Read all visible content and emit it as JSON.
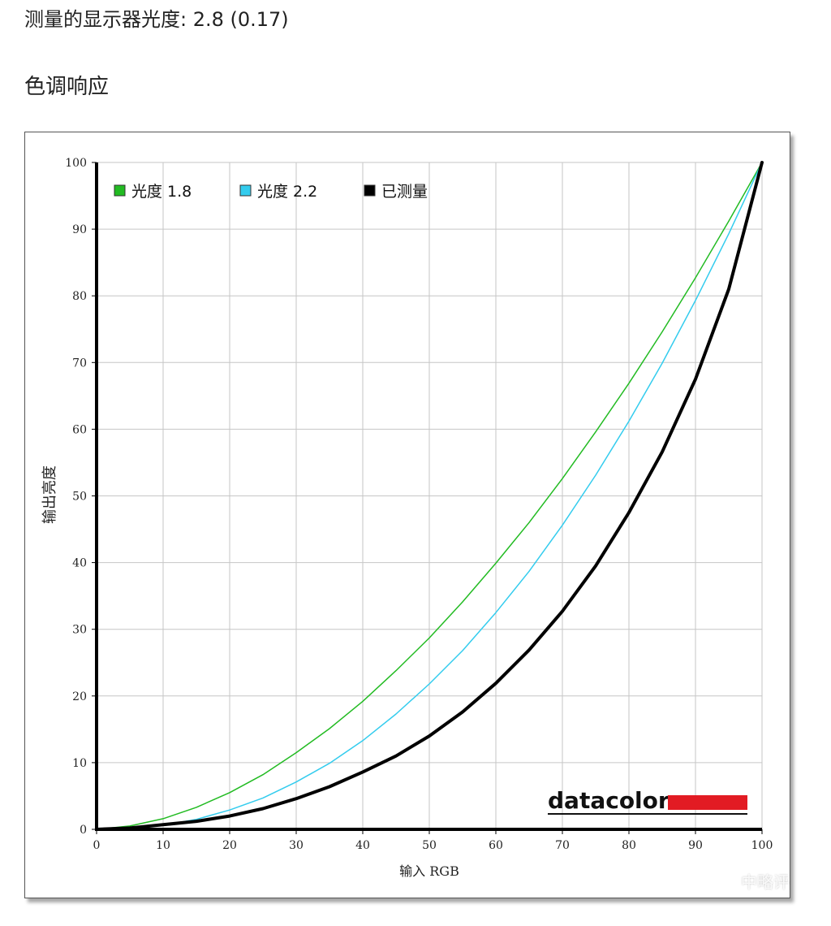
{
  "page": {
    "headline": "测量的显示器光度:  2.8 (0.17)",
    "section_title": "色调响应",
    "watermark": "中略评"
  },
  "chart_data": {
    "type": "line",
    "title": "",
    "xlabel": "输入  RGB",
    "ylabel": "输出亮度",
    "xlim": [
      0,
      100
    ],
    "ylim": [
      0,
      100
    ],
    "xticks": [
      0,
      10,
      20,
      30,
      40,
      50,
      60,
      70,
      80,
      90,
      100
    ],
    "yticks": [
      0,
      10,
      20,
      30,
      40,
      50,
      60,
      70,
      80,
      90,
      100
    ],
    "grid": true,
    "legend_position": "top-left",
    "brand": "datacolor",
    "series": [
      {
        "name": "光度  1.8",
        "color": "#22bb22",
        "x": [
          0,
          5,
          10,
          15,
          20,
          25,
          30,
          35,
          40,
          45,
          50,
          55,
          60,
          65,
          70,
          75,
          80,
          85,
          90,
          95,
          100
        ],
        "y": [
          0,
          0.5,
          1.6,
          3.3,
          5.5,
          8.2,
          11.5,
          15.1,
          19.2,
          23.8,
          28.7,
          34.1,
          39.9,
          46.0,
          52.6,
          59.6,
          66.9,
          74.6,
          82.7,
          91.2,
          100
        ]
      },
      {
        "name": "光度  2.2",
        "color": "#33ccee",
        "x": [
          0,
          5,
          10,
          15,
          20,
          25,
          30,
          35,
          40,
          45,
          50,
          55,
          60,
          65,
          70,
          75,
          80,
          85,
          90,
          95,
          100
        ],
        "y": [
          0,
          0.1,
          0.6,
          1.5,
          2.9,
          4.7,
          7.1,
          9.9,
          13.3,
          17.3,
          21.8,
          26.8,
          32.5,
          38.7,
          45.6,
          53.1,
          61.2,
          69.9,
          79.3,
          89.3,
          100
        ]
      },
      {
        "name": "已测量",
        "color": "#000000",
        "x": [
          0,
          5,
          10,
          15,
          20,
          25,
          30,
          35,
          40,
          45,
          50,
          55,
          60,
          65,
          70,
          75,
          80,
          85,
          90,
          95,
          100
        ],
        "y": [
          0,
          0.2,
          0.7,
          1.2,
          2.0,
          3.1,
          4.6,
          6.4,
          8.6,
          11.0,
          14.0,
          17.6,
          21.9,
          26.9,
          32.7,
          39.5,
          47.5,
          56.6,
          67.5,
          81.0,
          100
        ]
      }
    ]
  }
}
